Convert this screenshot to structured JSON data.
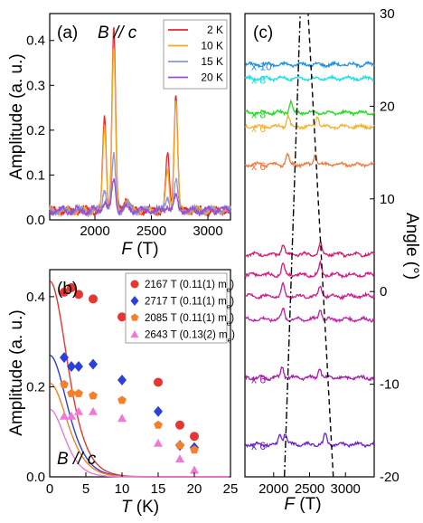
{
  "chart_data": [
    {
      "panel": "(a)",
      "type": "line",
      "annotation": "B // c",
      "xlabel": "F (T)",
      "ylabel": "Amplitude (a. u.)",
      "xlim": [
        1600,
        3200
      ],
      "ylim": [
        0,
        0.46
      ],
      "xticks": [
        2000,
        2500,
        3000
      ],
      "yticks": [
        0.0,
        0.1,
        0.2,
        0.3,
        0.4
      ],
      "legend_position": "top-right",
      "peaks": [
        2085,
        2167,
        2643,
        2717
      ],
      "series": [
        {
          "name": "2 K",
          "color": "#e8262b",
          "peak_heights": [
            0.205,
            0.408,
            0.125,
            0.265
          ]
        },
        {
          "name": "10 K",
          "color": "#f5a623",
          "peak_heights": [
            0.19,
            0.36,
            0.09,
            0.245
          ]
        },
        {
          "name": "15 K",
          "color": "#8c96e0",
          "peak_heights": [
            0.05,
            0.12,
            0.03,
            0.068
          ]
        },
        {
          "name": "20 K",
          "color": "#9b52c9",
          "peak_heights": [
            0.02,
            0.07,
            0.012,
            0.03
          ]
        }
      ]
    },
    {
      "panel": "(b)",
      "type": "scatter",
      "annotation": "B // c",
      "xlabel": "T (K)",
      "ylabel": "Amplitude (a. u.)",
      "xlim": [
        0,
        25
      ],
      "ylim": [
        0,
        0.46
      ],
      "xticks": [
        0,
        5,
        10,
        15,
        20,
        25
      ],
      "yticks": [
        0.0,
        0.2,
        0.4
      ],
      "legend_position": "top-right",
      "series": [
        {
          "name": "2167 T (0.11(1) m",
          "sub": "e",
          "close": ")",
          "marker": "circle",
          "color": "#e8352f",
          "x": [
            2,
            3,
            4,
            6,
            10,
            15,
            18,
            20
          ],
          "y": [
            0.41,
            0.42,
            0.405,
            0.395,
            0.355,
            0.21,
            0.115,
            0.09
          ],
          "fit_A": 0.435,
          "fit_m": 0.11
        },
        {
          "name": "2717 T (0.11(1) m",
          "sub": "e",
          "close": ")",
          "marker": "diamond",
          "color": "#2b3fdc",
          "x": [
            2,
            3,
            4,
            6,
            10,
            15,
            18,
            20
          ],
          "y": [
            0.265,
            0.245,
            0.245,
            0.25,
            0.215,
            0.145,
            0.07,
            0.065
          ],
          "fit_A": 0.27,
          "fit_m": 0.11
        },
        {
          "name": "2085 T (0.11(1) m",
          "sub": "e",
          "close": ")",
          "marker": "pentagon",
          "color": "#f57f2a",
          "x": [
            2,
            3,
            4,
            6,
            10,
            15,
            18,
            20
          ],
          "y": [
            0.205,
            0.185,
            0.185,
            0.18,
            0.17,
            0.115,
            0.07,
            0.06
          ],
          "fit_A": 0.208,
          "fit_m": 0.11
        },
        {
          "name": "2643 T (0.13(2) m",
          "sub": "e",
          "close": ")",
          "marker": "triangle",
          "color": "#f078d8",
          "x": [
            2,
            3,
            4,
            6,
            10,
            15,
            18,
            20
          ],
          "y": [
            0.135,
            0.135,
            0.145,
            0.145,
            0.13,
            0.075,
            0.04,
            0.015
          ],
          "fit_A": 0.15,
          "fit_m": 0.13
        }
      ]
    },
    {
      "panel": "(c)",
      "type": "line",
      "xlabel": "F (T)",
      "ylabel": "Angle (°)",
      "xlim": [
        1600,
        3400
      ],
      "ylim": [
        -20,
        30
      ],
      "xticks": [
        2000,
        2500,
        3000
      ],
      "yticks": [
        -20,
        -10,
        0,
        10,
        20,
        30
      ],
      "traces": [
        {
          "angle": 24.5,
          "color": "#1e90e0",
          "multiplier": "x 10",
          "peaks": []
        },
        {
          "angle": 23.0,
          "color": "#18e0e8",
          "multiplier": "x 8",
          "peaks": []
        },
        {
          "angle": 19.3,
          "color": "#22dd22",
          "multiplier": "x 8",
          "peaks": [
            2240
          ]
        },
        {
          "angle": 17.8,
          "color": "#f5b030",
          "multiplier": "x 6",
          "peaks": [
            2200,
            2610
          ]
        },
        {
          "angle": 13.7,
          "color": "#f07840",
          "multiplier": "x 6",
          "peaks": [
            2190,
            2580
          ]
        },
        {
          "angle": 4.0,
          "color": "#d8166a",
          "multiplier": "",
          "peaks": [
            2130,
            2650
          ]
        },
        {
          "angle": 1.8,
          "color": "#d81880",
          "multiplier": "",
          "peaks": [
            2130,
            2650
          ]
        },
        {
          "angle": -0.5,
          "color": "#cc1c90",
          "multiplier": "",
          "peaks": [
            2130,
            2650
          ]
        },
        {
          "angle": -3.0,
          "color": "#c41ea8",
          "multiplier": "",
          "peaks": [
            2130,
            2650
          ]
        },
        {
          "angle": -9.3,
          "color": "#a81ab0",
          "multiplier": "x 6",
          "peaks": [
            2120,
            2640
          ]
        },
        {
          "angle": -16.5,
          "color": "#6a1ecc",
          "multiplier": "x 6",
          "peaks": [
            2090,
            2160,
            2720
          ]
        }
      ],
      "guides": [
        {
          "style": "dash-dot",
          "angle": [
            -20,
            30
          ],
          "F": [
            2150,
            2370
          ]
        },
        {
          "style": "dashed",
          "angle": [
            -20,
            30
          ],
          "F": [
            2830,
            2480
          ]
        }
      ]
    }
  ]
}
